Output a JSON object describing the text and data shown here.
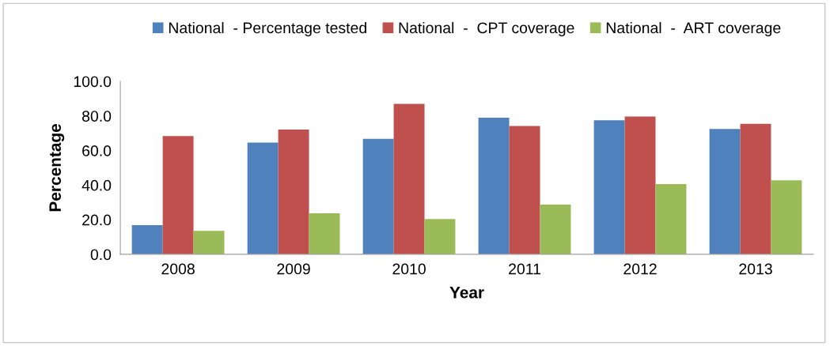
{
  "chart_data": {
    "type": "bar",
    "xlabel": "Year",
    "ylabel": "Percentage",
    "categories": [
      "2008",
      "2009",
      "2010",
      "2011",
      "2012",
      "2013"
    ],
    "series": [
      {
        "name": "National  - Percentage tested",
        "color": "#4f81bd",
        "values": [
          16.9,
          64.6,
          66.7,
          79.0,
          77.5,
          72.5
        ]
      },
      {
        "name": "National  -  CPT coverage",
        "color": "#c0504d",
        "values": [
          68.4,
          72.1,
          87.0,
          74.2,
          79.7,
          75.4
        ]
      },
      {
        "name": "National  -  ART coverage",
        "color": "#9bbb59",
        "values": [
          13.6,
          23.7,
          20.4,
          28.7,
          40.6,
          42.8
        ]
      }
    ],
    "ylim": [
      0,
      100
    ],
    "yticks": [
      {
        "value": 0,
        "label": "0.0"
      },
      {
        "value": 20,
        "label": "20.0"
      },
      {
        "value": 40,
        "label": "40.0"
      },
      {
        "value": 60,
        "label": "60.0"
      },
      {
        "value": 80,
        "label": "80.0"
      },
      {
        "value": 100,
        "label": "100.0"
      }
    ],
    "grid": false,
    "legend": "top"
  }
}
